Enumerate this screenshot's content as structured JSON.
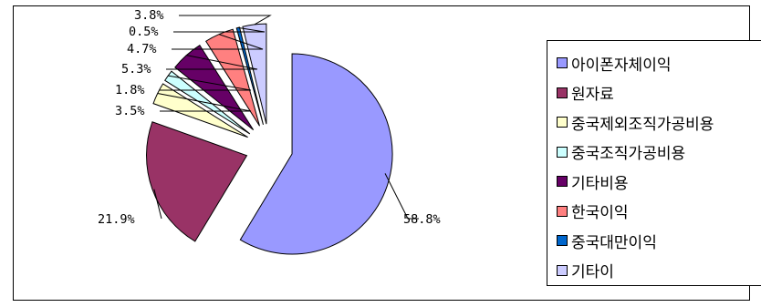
{
  "chart_data": {
    "type": "pie",
    "exploded": true,
    "legend_position": "right",
    "slices": [
      {
        "name": "아이폰자체이익",
        "value": 58.8,
        "label": "58.8%",
        "color": "#9999ff"
      },
      {
        "name": "원자료",
        "value": 21.9,
        "label": "21.9%",
        "color": "#993366"
      },
      {
        "name": "중국제외조직가공비용",
        "value": 3.5,
        "label": "3.5%",
        "color": "#ffffcc"
      },
      {
        "name": "중국조직가공비용",
        "value": 1.8,
        "label": "1.8%",
        "color": "#ccffff"
      },
      {
        "name": "기타비용",
        "value": 5.3,
        "label": "5.3%",
        "color": "#660066"
      },
      {
        "name": "한국이익",
        "value": 4.7,
        "label": "4.7%",
        "color": "#ff8080"
      },
      {
        "name": "중국대만이익",
        "value": 0.5,
        "label": "0.5%",
        "color": "#0066cc"
      },
      {
        "name": "기타이",
        "value": 3.8,
        "label": "3.8%",
        "color": "#ccccff"
      }
    ]
  }
}
